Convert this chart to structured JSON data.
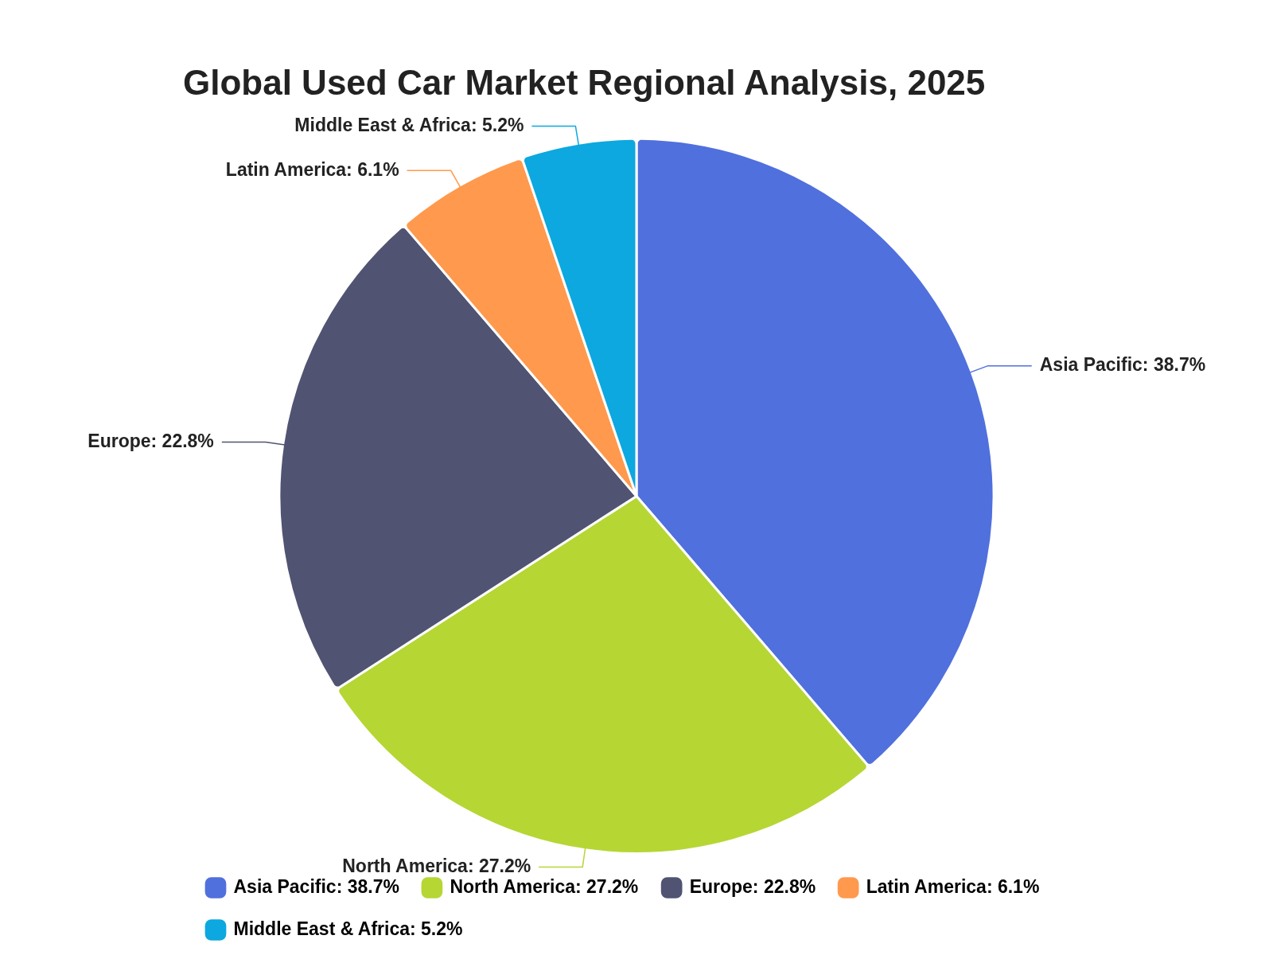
{
  "chart_data": {
    "type": "pie",
    "title": "Global Used Car Market Regional Analysis, 2025",
    "categories": [
      "Asia Pacific",
      "North America",
      "Europe",
      "Latin America",
      "Middle East & Africa"
    ],
    "values": [
      38.7,
      27.2,
      22.8,
      6.1,
      5.2
    ],
    "value_labels": [
      "38.7%",
      "27.2%",
      "22.8%",
      "6.1%",
      "5.2%"
    ],
    "colors": [
      "#5070dd",
      "#b6d634",
      "#505372",
      "#ff994d",
      "#0ca8df"
    ],
    "legend": "bottom"
  }
}
